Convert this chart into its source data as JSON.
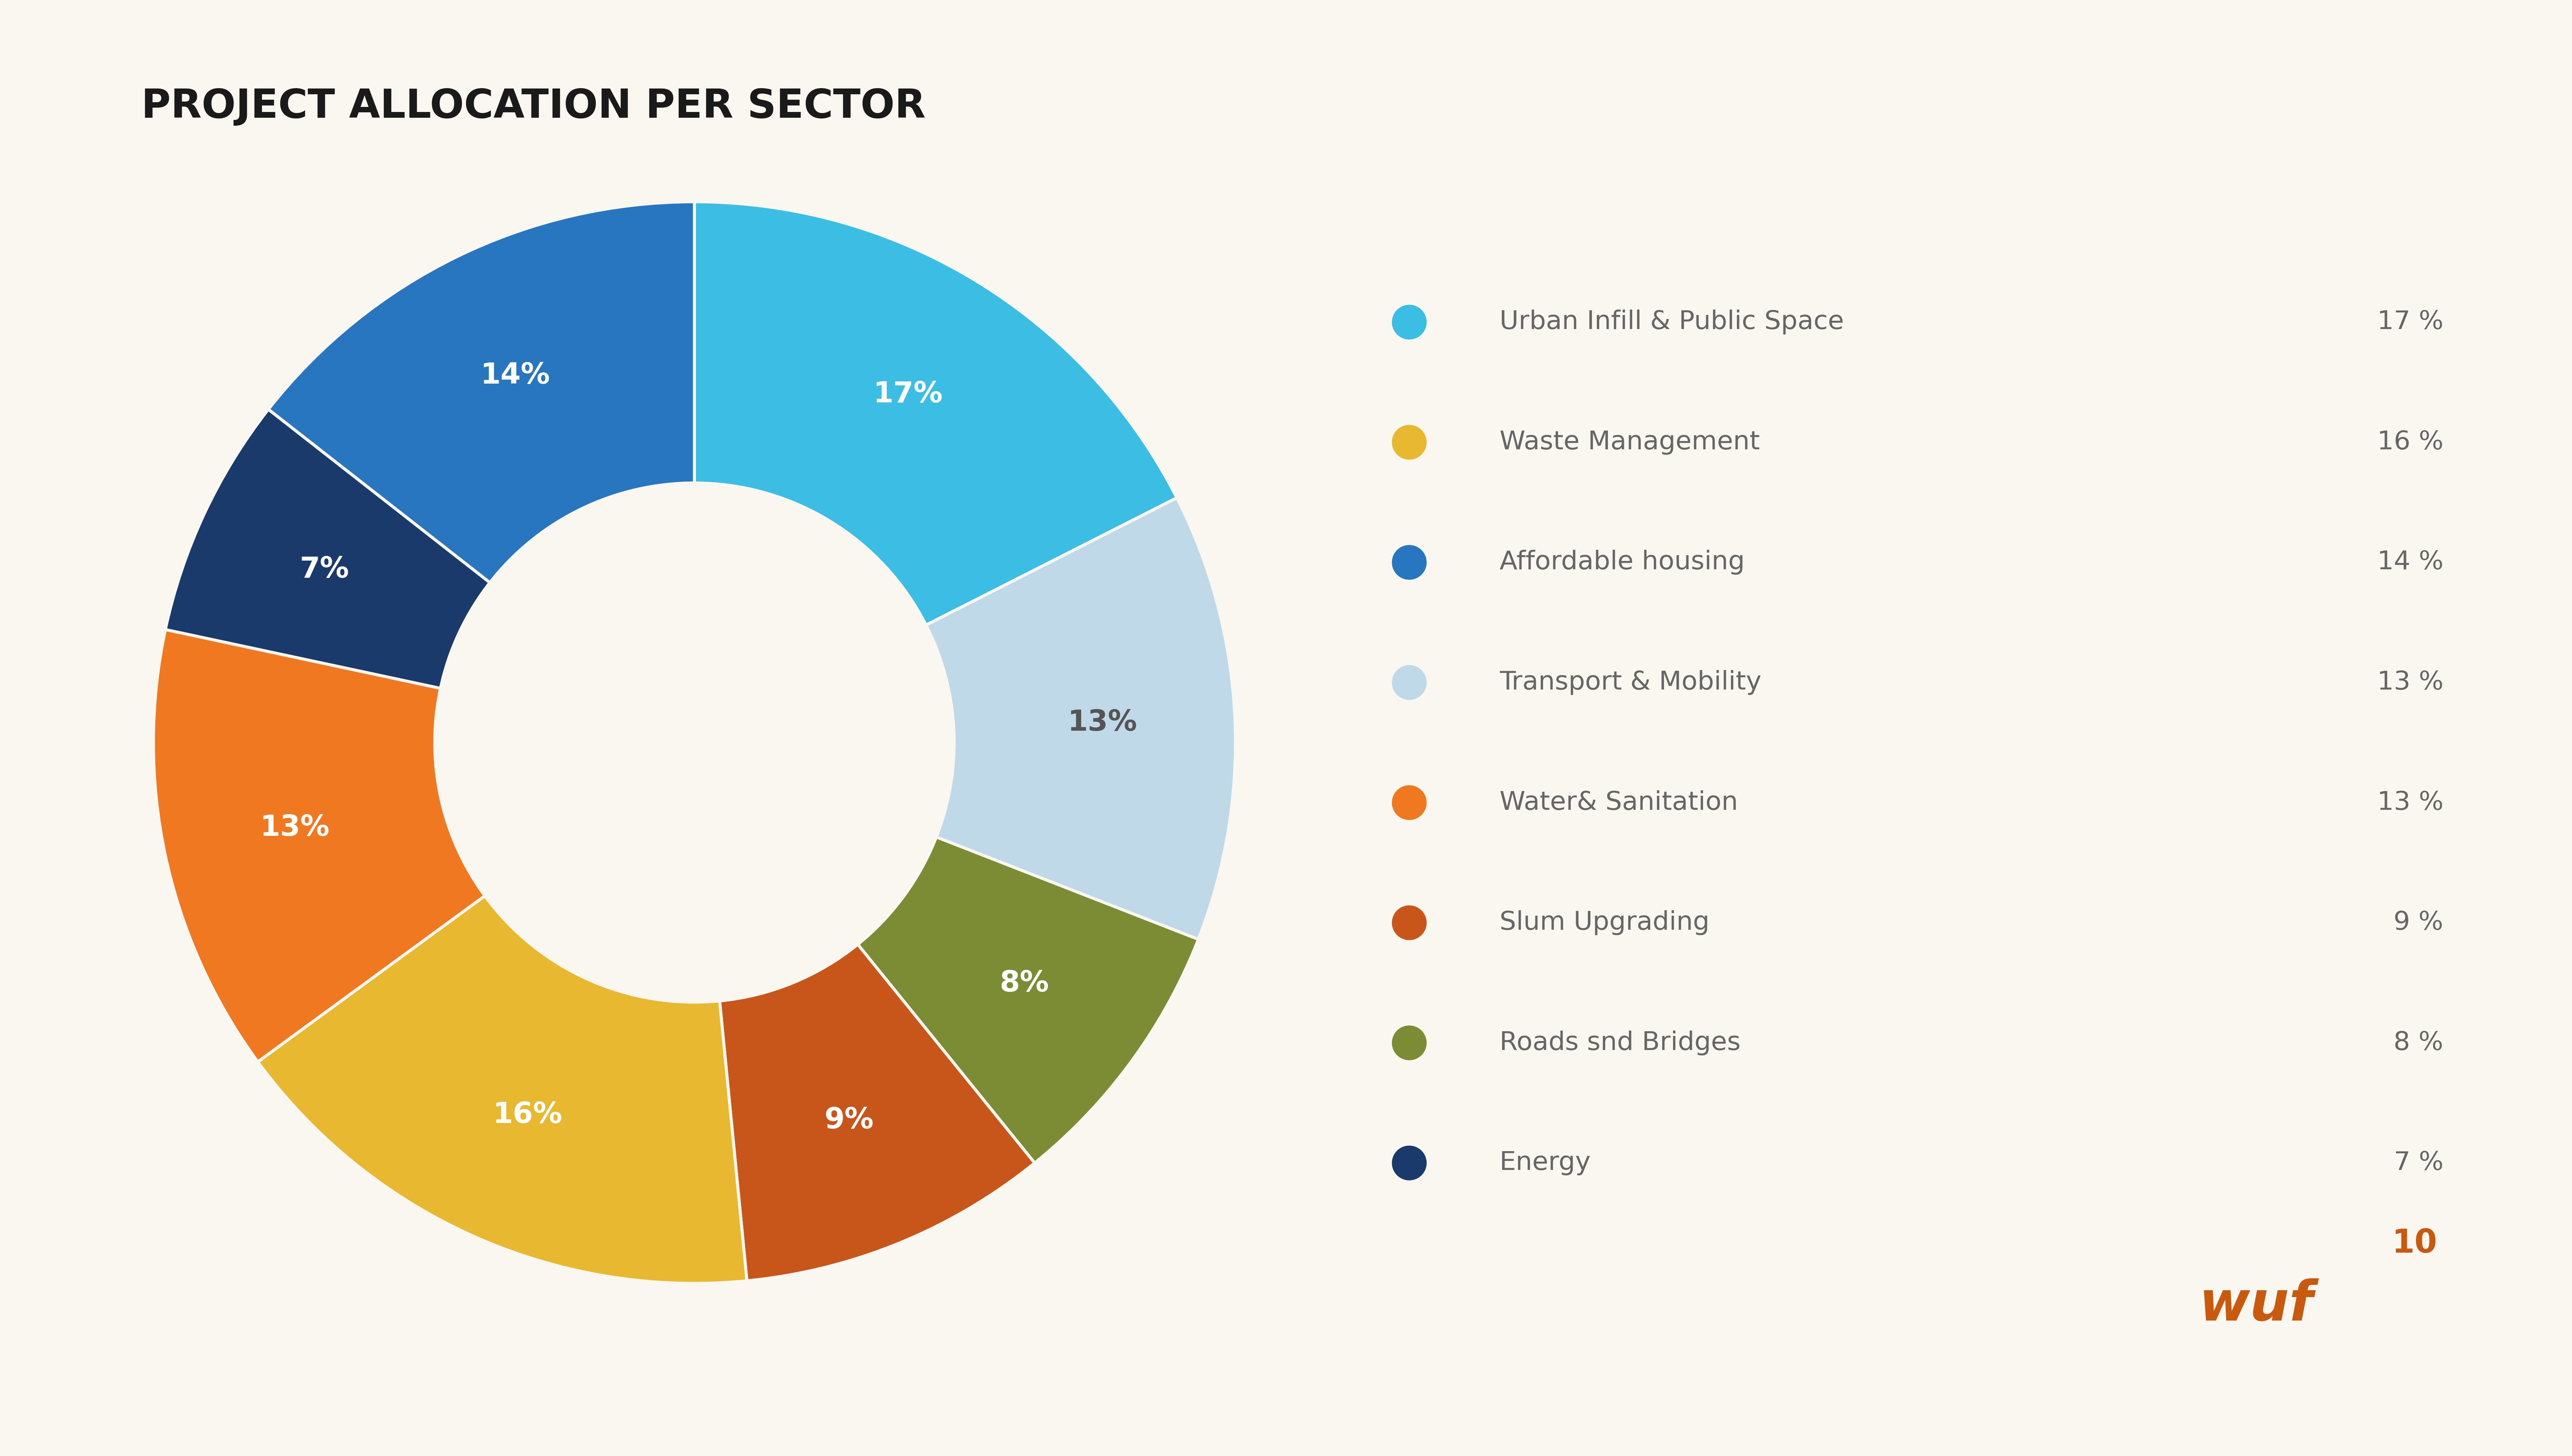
{
  "title": "PROJECT ALLOCATION PER SECTOR",
  "background_color": "#FAF6F0",
  "title_color": "#1a1a1a",
  "title_fontsize": 80,
  "segments": [
    {
      "label": "Urban Infill & Public Space",
      "value": 17,
      "color": "#3BBDE4",
      "pct_label": "17%",
      "label_color": "#ffffff"
    },
    {
      "label": "Transport & Mobility",
      "value": 13,
      "color": "#BFD9E8",
      "pct_label": "13%",
      "label_color": "#555555"
    },
    {
      "label": "Roads snd Bridges",
      "value": 8,
      "color": "#7B8C35",
      "pct_label": "8%",
      "label_color": "#ffffff"
    },
    {
      "label": "Slum Upgrading",
      "value": 9,
      "color": "#C8561A",
      "pct_label": "9%",
      "label_color": "#ffffff"
    },
    {
      "label": "Waste Management",
      "value": 16,
      "color": "#E8B830",
      "pct_label": "16%",
      "label_color": "#ffffff"
    },
    {
      "label": "Water& Sanitation",
      "value": 13,
      "color": "#F07820",
      "pct_label": "13%",
      "label_color": "#ffffff"
    },
    {
      "label": "Energy",
      "value": 7,
      "color": "#1A3A6B",
      "pct_label": "7%",
      "label_color": "#ffffff"
    },
    {
      "label": "Affordable housing",
      "value": 14,
      "color": "#2875C0",
      "pct_label": "14%",
      "label_color": "#ffffff"
    }
  ],
  "legend_order": [
    {
      "label": "Urban Infill & Public Space",
      "value": "17 %",
      "color": "#3BBDE4"
    },
    {
      "label": "Waste Management",
      "value": "16 %",
      "color": "#E8B830"
    },
    {
      "label": "Affordable housing",
      "value": "14 %",
      "color": "#2875C0"
    },
    {
      "label": "Transport & Mobility",
      "value": "13 %",
      "color": "#BFD9E8"
    },
    {
      "label": "Water& Sanitation",
      "value": "13 %",
      "color": "#F07820"
    },
    {
      "label": "Slum Upgrading",
      "value": "9 %",
      "color": "#C8561A"
    },
    {
      "label": "Roads snd Bridges",
      "value": "8 %",
      "color": "#7B8C35"
    },
    {
      "label": "Energy",
      "value": "7 %",
      "color": "#1A3A6B"
    }
  ],
  "label_fontsize": 58,
  "legend_fontsize": 52,
  "legend_pct_fontsize": 52,
  "legend_label_color": "#666666",
  "legend_pct_color": "#666666",
  "separator_color": "#CCCCCC",
  "wuf_color": "#C85A10",
  "wuf_fontsize": 110,
  "wuf10_superscript_fontsize": 65
}
